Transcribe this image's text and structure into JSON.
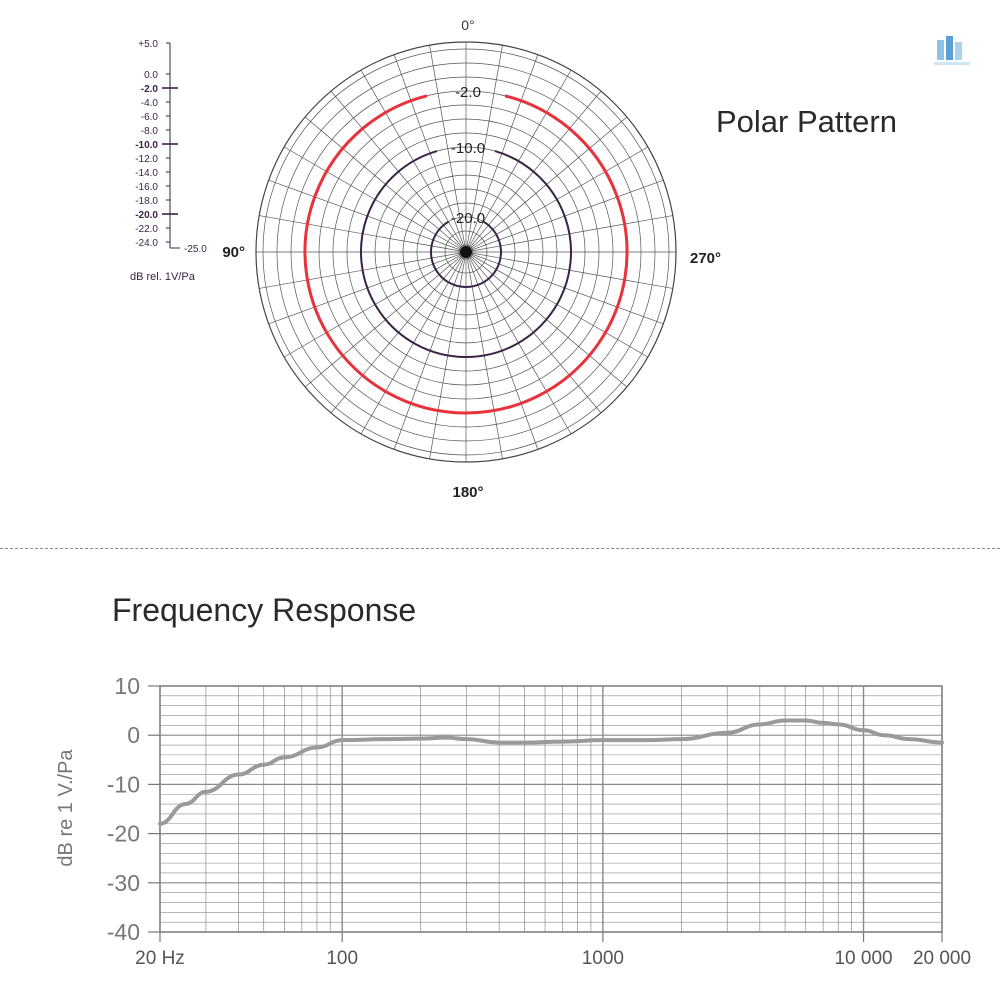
{
  "polar": {
    "title": "Polar Pattern",
    "angle_labels": {
      "top": "0°",
      "left": "90°",
      "right": "270°",
      "bottom": "180°"
    },
    "ring_labels": [
      "-2.0",
      "-10.0",
      "-20.0"
    ],
    "scale_labels": [
      "+5.0",
      "0.0",
      "-2.0",
      "-4.0",
      "-6.0",
      "-8.0",
      "-10.0",
      "-12.0",
      "-14.0",
      "-16.0",
      "-18.0",
      "-20.0",
      "-22.0",
      "-24.0",
      "-25.0"
    ],
    "scale_bold": [
      "-2.0",
      "-10.0",
      "-20.0"
    ],
    "scale_unit": "dB rel. 1V/Pa",
    "colors": {
      "highlight_ring": "#e8323c",
      "rings": "#3a2346",
      "grid": "#555555"
    }
  },
  "frequency": {
    "title": "Frequency Response",
    "colors": {
      "curve": "#9a9a9a",
      "grid": "#8a8a8a",
      "axis_text": "#777777"
    }
  },
  "chart_data": [
    {
      "type": "line",
      "subtype": "polar",
      "title": "Polar Pattern",
      "ylabel": "dB rel. 1V/Pa",
      "radial_range_db": [
        -25,
        5
      ],
      "angles_deg": [
        0,
        90,
        180,
        270
      ],
      "series": [
        {
          "name": "-2.0",
          "values": [
            -2.0,
            -2.0,
            -2.0,
            -2.0
          ]
        },
        {
          "name": "-10.0",
          "values": [
            -10.0,
            -10.0,
            -10.0,
            -10.0
          ]
        },
        {
          "name": "-20.0",
          "values": [
            -20.0,
            -20.0,
            -20.0,
            -20.0
          ]
        }
      ],
      "grid": true
    },
    {
      "type": "line",
      "title": "Frequency Response",
      "xlabel": "",
      "ylabel": "dB re 1 V./Pa",
      "x_scale": "log",
      "xlim": [
        20,
        20000
      ],
      "ylim": [
        -40,
        10
      ],
      "x_tick_labels": [
        "20 Hz",
        "100",
        "1000",
        "10 000",
        "20 000"
      ],
      "x_ticks": [
        20,
        100,
        1000,
        10000,
        20000
      ],
      "y_ticks": [
        10,
        0,
        -10,
        -20,
        -30,
        -40
      ],
      "grid": true,
      "x": [
        20,
        25,
        30,
        40,
        50,
        60,
        80,
        100,
        150,
        200,
        250,
        300,
        400,
        500,
        700,
        1000,
        1500,
        2000,
        3000,
        4000,
        5000,
        6000,
        7000,
        8000,
        10000,
        12000,
        15000,
        20000
      ],
      "y": [
        -18,
        -14,
        -11.5,
        -8,
        -6,
        -4.5,
        -2.5,
        -1,
        -0.8,
        -0.7,
        -0.5,
        -0.8,
        -1.5,
        -1.5,
        -1.3,
        -1,
        -1,
        -0.8,
        0.5,
        2.2,
        3,
        3,
        2.5,
        2.2,
        1,
        0,
        -0.8,
        -1.5
      ]
    }
  ]
}
